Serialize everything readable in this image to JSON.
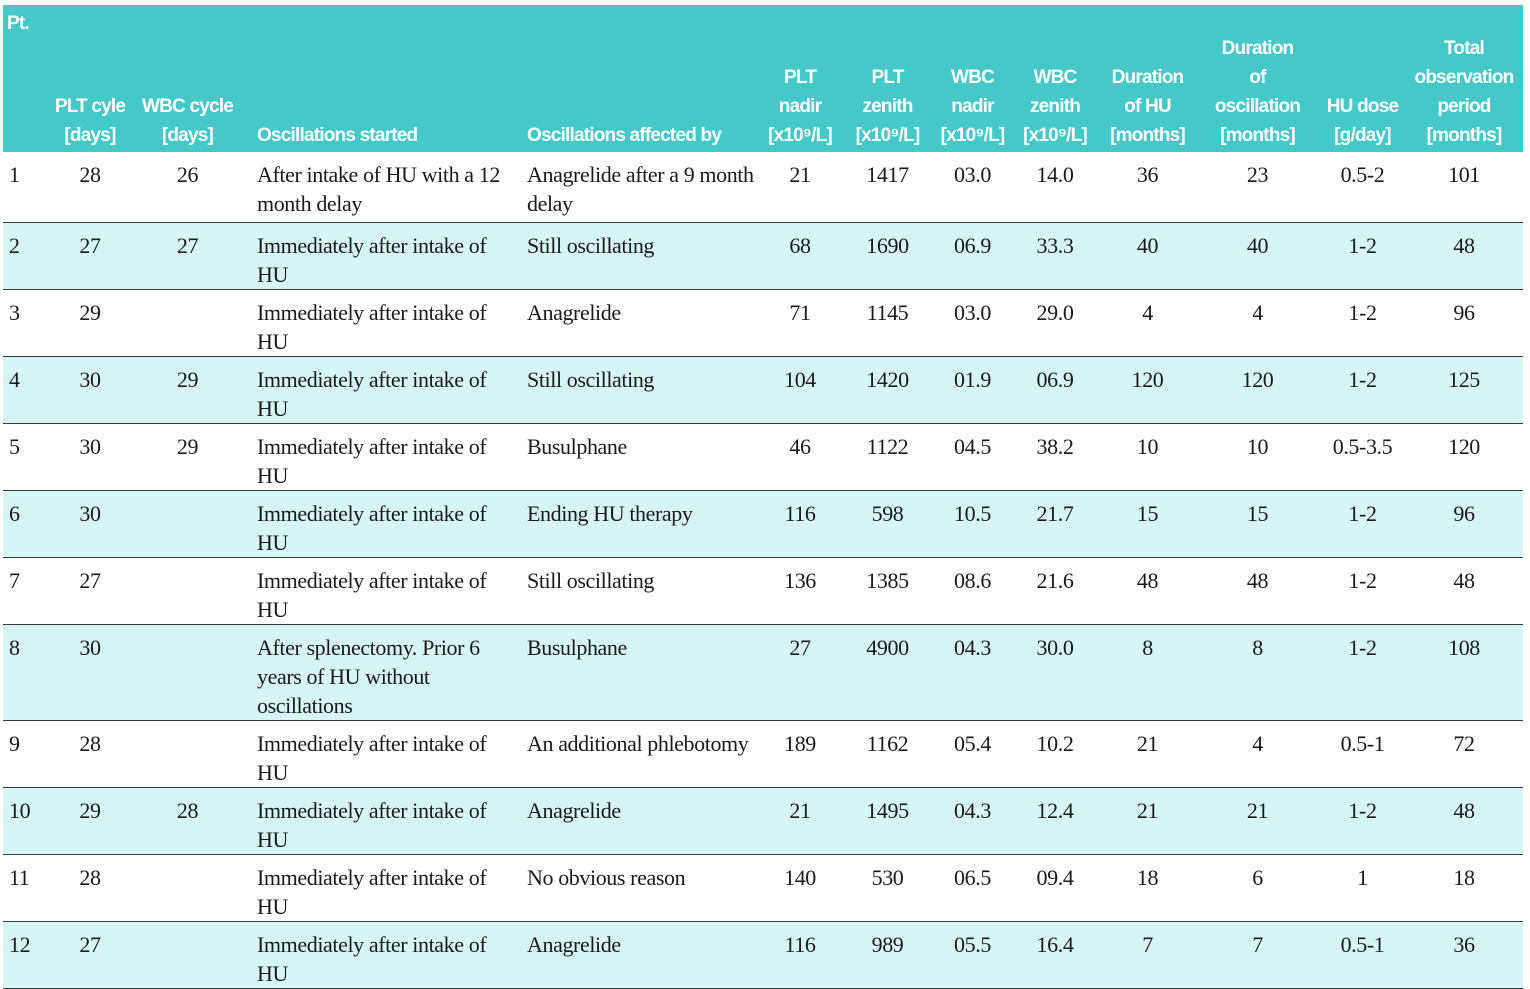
{
  "table": {
    "headers": [
      "Pt.",
      "PLT cyle\n[days]",
      "WBC cycle\n[days]",
      "Oscillations started",
      "Oscillations affected by",
      "PLT\nnadir\n[x10⁹/L]",
      "PLT\nzenith\n[x10⁹/L]",
      "WBC\nnadir\n[x10⁹/L]",
      "WBC\nzenith\n[x10⁹/L]",
      "Duration\nof HU\n[months]",
      "Duration\nof\noscillation\n[months]",
      "HU dose\n[g/day]",
      "Total\nobservation\nperiod\n[months]"
    ],
    "rows": [
      [
        "1",
        "28",
        "26",
        "After intake of HU with a 12 month delay",
        "Anagrelide after a 9 month delay",
        "21",
        "1417",
        "03.0",
        "14.0",
        "36",
        "23",
        "0.5-2",
        "101"
      ],
      [
        "2",
        "27",
        "27",
        "Immediately after intake of HU",
        "Still oscillating",
        "68",
        "1690",
        "06.9",
        "33.3",
        "40",
        "40",
        "1-2",
        "48"
      ],
      [
        "3",
        "29",
        "",
        "Immediately after intake of HU",
        "Anagrelide",
        "71",
        "1145",
        "03.0",
        "29.0",
        "4",
        "4",
        "1-2",
        "96"
      ],
      [
        "4",
        "30",
        "29",
        "Immediately after intake of HU",
        "Still oscillating",
        "104",
        "1420",
        "01.9",
        "06.9",
        "120",
        "120",
        "1-2",
        "125"
      ],
      [
        "5",
        "30",
        "29",
        "Immediately after intake of HU",
        "Busulphane",
        "46",
        "1122",
        "04.5",
        "38.2",
        "10",
        "10",
        "0.5-3.5",
        "120"
      ],
      [
        "6",
        "30",
        "",
        "Immediately after intake of HU",
        "Ending HU therapy",
        "116",
        "598",
        "10.5",
        "21.7",
        "15",
        "15",
        "1-2",
        "96"
      ],
      [
        "7",
        "27",
        "",
        "Immediately after intake of HU",
        "Still oscillating",
        "136",
        "1385",
        "08.6",
        "21.6",
        "48",
        "48",
        "1-2",
        "48"
      ],
      [
        "8",
        "30",
        "",
        "After splenectomy. Prior 6 years of HU without oscillations",
        "Busulphane",
        "27",
        "4900",
        "04.3",
        "30.0",
        "8",
        "8",
        "1-2",
        "108"
      ],
      [
        "9",
        "28",
        "",
        "Immediately after intake of HU",
        "An additional phlebotomy",
        "189",
        "1162",
        "05.4",
        "10.2",
        "21",
        "4",
        "0.5-1",
        "72"
      ],
      [
        "10",
        "29",
        "28",
        "Immediately after intake of HU",
        "Anagrelide",
        "21",
        "1495",
        "04.3",
        "12.4",
        "21",
        "21",
        "1-2",
        "48"
      ],
      [
        "11",
        "28",
        "",
        "Immediately after intake of HU",
        "No obvious reason",
        "140",
        "530",
        "06.5",
        "09.4",
        "18",
        "6",
        "1",
        "18"
      ],
      [
        "12",
        "27",
        "",
        "Immediately after intake of HU",
        "Anagrelide",
        "116",
        "989",
        "05.5",
        "16.4",
        "7",
        "7",
        "0.5-1",
        "36"
      ]
    ]
  },
  "colors": {
    "header_bg": "#45c9c8",
    "header_text": "#ffffff",
    "alt_row_bg": "#d6f6f6"
  }
}
